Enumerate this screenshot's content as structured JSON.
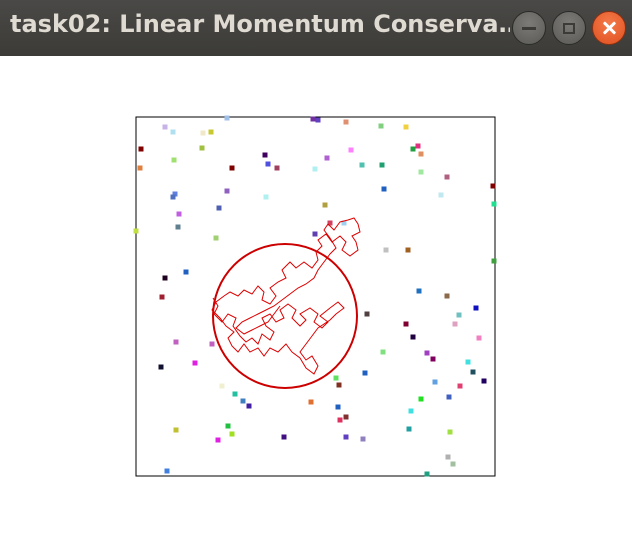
{
  "window": {
    "title": "task02: Linear Momentum Conserva…",
    "buttons": {
      "minimize": "minimize",
      "maximize": "maximize",
      "close": "close"
    }
  },
  "colors": {
    "titlebar": "#3c3b37",
    "title_text": "#dfdbd2",
    "close_button": "#e95420",
    "circle": "#cc0000",
    "trail": "#dd0000",
    "box_border": "#000000"
  },
  "simulation": {
    "has_box": true,
    "has_circle": true,
    "has_trail": true,
    "particle_count": 96
  }
}
